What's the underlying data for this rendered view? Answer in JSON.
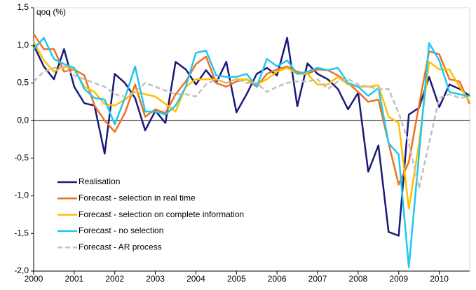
{
  "chart_data": {
    "type": "line",
    "y_label": "qoq (%)",
    "x": [
      2000,
      2000.25,
      2000.5,
      2000.75,
      2001,
      2001.25,
      2001.5,
      2001.75,
      2002,
      2002.25,
      2002.5,
      2002.75,
      2003,
      2003.25,
      2003.5,
      2003.75,
      2004,
      2004.25,
      2004.5,
      2004.75,
      2005,
      2005.25,
      2005.5,
      2005.75,
      2006,
      2006.25,
      2006.5,
      2006.75,
      2007,
      2007.25,
      2007.5,
      2007.75,
      2008,
      2008.25,
      2008.5,
      2008.75,
      2009,
      2009.25,
      2009.5,
      2009.75,
      2010,
      2010.25,
      2010.5,
      2010.75
    ],
    "xlim": [
      2000,
      2010.75
    ],
    "xticks": [
      2000,
      2001,
      2002,
      2003,
      2004,
      2005,
      2006,
      2007,
      2008,
      2009,
      2010
    ],
    "ylim": [
      -2.0,
      1.5
    ],
    "yticks": [
      {
        "value": -2.0,
        "label": "-2,0"
      },
      {
        "value": -1.5,
        "label": "-1,5"
      },
      {
        "value": -1.0,
        "label": "-1,0"
      },
      {
        "value": -0.5,
        "label": "-0,5"
      },
      {
        "value": 0,
        "label": "0,0"
      },
      {
        "value": 0.5,
        "label": "0,5"
      },
      {
        "value": 1.0,
        "label": "1,0"
      },
      {
        "value": 1.5,
        "label": "1,5"
      }
    ],
    "grid": false,
    "legend": "lower left",
    "series": [
      {
        "name": "Realisation",
        "color": "#1a1a7a",
        "dashed": false,
        "values": [
          1.0,
          0.72,
          0.55,
          0.95,
          0.45,
          0.23,
          0.2,
          -0.44,
          0.62,
          0.5,
          0.3,
          -0.13,
          0.13,
          -0.03,
          0.78,
          0.68,
          0.48,
          0.67,
          0.5,
          0.78,
          0.11,
          0.35,
          0.62,
          0.7,
          0.6,
          1.1,
          0.19,
          0.76,
          0.62,
          0.55,
          0.42,
          0.15,
          0.37,
          -0.68,
          -0.33,
          -1.48,
          -1.53,
          0.08,
          0.17,
          0.58,
          0.18,
          0.48,
          0.42,
          0.33
        ]
      },
      {
        "name": "Forecast - selection in real time",
        "color": "#f07020",
        "dashed": false,
        "values": [
          1.15,
          0.95,
          0.95,
          0.65,
          0.68,
          0.6,
          0.2,
          0.0,
          -0.15,
          0.1,
          0.48,
          0.05,
          0.15,
          0.1,
          0.35,
          0.52,
          0.75,
          0.85,
          0.5,
          0.45,
          0.52,
          0.55,
          0.45,
          0.62,
          0.68,
          0.72,
          0.65,
          0.62,
          0.68,
          0.67,
          0.6,
          0.5,
          0.38,
          0.25,
          0.28,
          -0.3,
          -0.85,
          -0.55,
          0.2,
          0.92,
          0.88,
          0.55,
          0.52,
          0.22
        ]
      },
      {
        "name": "Forecast - selection on complete information",
        "color": "#ffc000",
        "dashed": false,
        "values": [
          1.05,
          0.8,
          0.65,
          0.72,
          0.68,
          0.45,
          0.38,
          0.22,
          0.2,
          0.28,
          0.38,
          0.35,
          0.32,
          0.22,
          0.12,
          0.45,
          0.55,
          0.55,
          0.55,
          0.5,
          0.55,
          0.55,
          0.48,
          0.55,
          0.65,
          0.7,
          0.62,
          0.62,
          0.48,
          0.48,
          0.58,
          0.48,
          0.45,
          0.45,
          0.47,
          0.05,
          -0.03,
          -1.17,
          -0.3,
          0.78,
          0.68,
          0.68,
          0.45,
          0.25
        ]
      },
      {
        "name": "Forecast - no selection",
        "color": "#1ec8f0",
        "dashed": false,
        "values": [
          0.95,
          1.1,
          0.82,
          0.75,
          0.7,
          0.42,
          0.3,
          0.28,
          -0.05,
          0.3,
          0.72,
          0.12,
          0.12,
          0.08,
          0.2,
          0.45,
          0.9,
          0.93,
          0.6,
          0.58,
          0.58,
          0.62,
          0.45,
          0.82,
          0.72,
          0.8,
          0.62,
          0.65,
          0.7,
          0.67,
          0.7,
          0.5,
          0.45,
          0.33,
          0.43,
          -0.3,
          -0.45,
          -1.95,
          -0.45,
          1.03,
          0.8,
          0.38,
          0.35,
          0.32
        ]
      },
      {
        "name": "Forecast - AR process",
        "color": "#c0c0c0",
        "dashed": true,
        "values": [
          0.52,
          0.65,
          0.7,
          0.7,
          0.6,
          0.55,
          0.5,
          0.45,
          0.35,
          0.32,
          0.38,
          0.5,
          0.45,
          0.4,
          0.35,
          0.35,
          0.32,
          0.48,
          0.55,
          0.5,
          0.55,
          0.5,
          0.5,
          0.38,
          0.45,
          0.5,
          0.52,
          0.52,
          0.55,
          0.42,
          0.52,
          0.55,
          0.48,
          0.45,
          0.42,
          0.42,
          0.1,
          -0.3,
          -0.9,
          -0.3,
          0.3,
          0.35,
          0.3,
          0.32
        ]
      }
    ]
  }
}
